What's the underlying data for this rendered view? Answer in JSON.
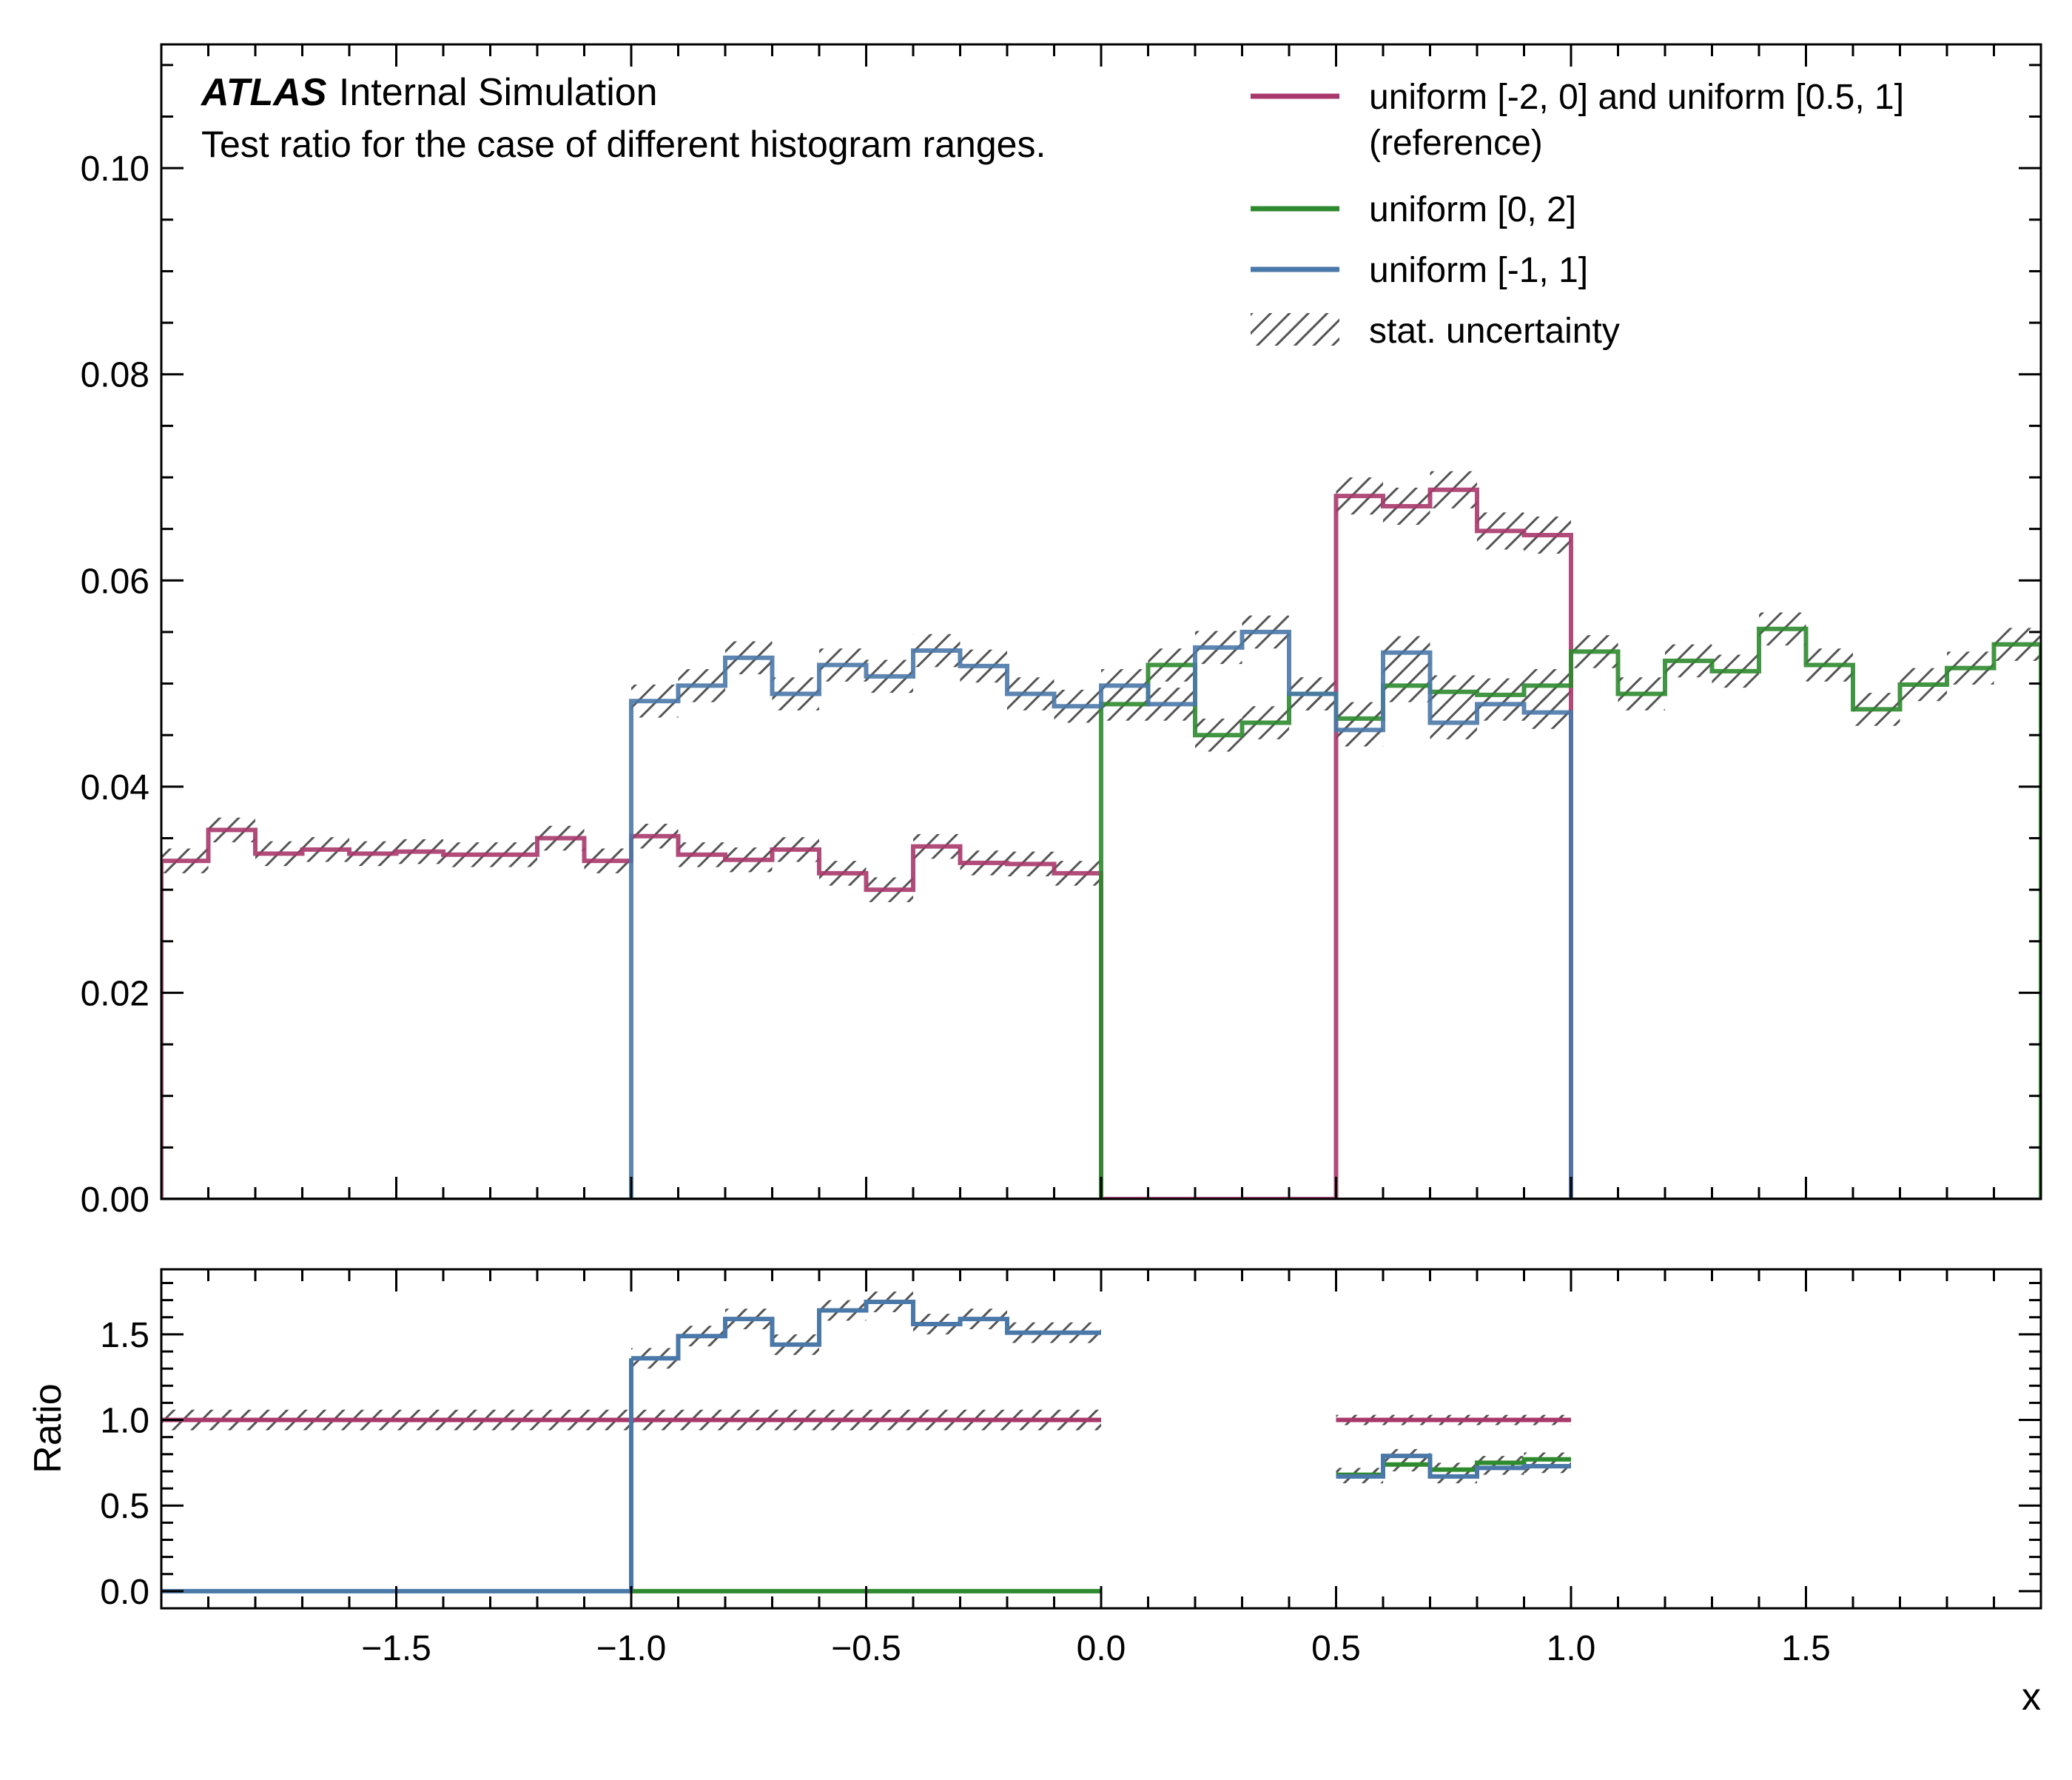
{
  "colors": {
    "reference": "#a8386b",
    "uniform_0_2": "#2e8a2e",
    "uniform_m1_1": "#4a78a8",
    "hatch": "#555555"
  },
  "atlas": {
    "label": "ATLAS",
    "sublabel": "Internal Simulation",
    "annotation": "Test ratio for the case of different histogram ranges."
  },
  "legend": {
    "placement": "top-right",
    "items": [
      {
        "label_lines": [
          "uniform [-2, 0] and uniform [0.5, 1]",
          "(reference)"
        ],
        "color_key": "reference",
        "kind": "line"
      },
      {
        "label_lines": [
          "uniform [0, 2]"
        ],
        "color_key": "uniform_0_2",
        "kind": "line"
      },
      {
        "label_lines": [
          "uniform [-1, 1]"
        ],
        "color_key": "uniform_m1_1",
        "kind": "line"
      },
      {
        "label_lines": [
          "stat. uncertainty"
        ],
        "color_key": "hatch",
        "kind": "hatch"
      }
    ]
  },
  "chart_data": [
    {
      "type": "line",
      "panel": "main",
      "xlim": [
        -2,
        2
      ],
      "ylim": [
        0,
        0.112
      ],
      "yticks": [
        0.0,
        0.02,
        0.04,
        0.06,
        0.08,
        0.1
      ],
      "ytick_labels": [
        "0.00",
        "0.02",
        "0.04",
        "0.06",
        "0.08",
        "0.10"
      ],
      "ylabel": "",
      "grid": false,
      "series": [
        {
          "color_key": "reference",
          "bins": [
            -2.0,
            -1.9,
            -1.8,
            -1.7,
            -1.6,
            -1.5,
            -1.4,
            -1.3,
            -1.2,
            -1.1,
            -1.0,
            -0.9,
            -0.8,
            -0.7,
            -0.6,
            -0.5,
            -0.4,
            -0.3,
            -0.2,
            -0.1,
            0.0,
            0.5,
            0.6,
            0.7,
            0.8,
            0.9,
            1.0
          ],
          "values": [
            0.0328,
            0.0358,
            0.0335,
            0.0339,
            0.0335,
            0.0337,
            0.0334,
            0.0334,
            0.035,
            0.0328,
            0.0352,
            0.0334,
            0.0329,
            0.0339,
            0.0316,
            0.03,
            0.0342,
            0.0326,
            0.0325,
            0.0316,
            0.0,
            0.0682,
            0.0672,
            0.0688,
            0.0648,
            0.0644
          ],
          "errors": [
            0.0012,
            0.0012,
            0.0012,
            0.0012,
            0.0012,
            0.0012,
            0.0012,
            0.0012,
            0.0012,
            0.0012,
            0.0012,
            0.0012,
            0.0012,
            0.0012,
            0.0012,
            0.0012,
            0.0012,
            0.0012,
            0.0012,
            0.0012,
            0.0,
            0.0018,
            0.0018,
            0.0018,
            0.0018,
            0.0018
          ]
        },
        {
          "color_key": "uniform_0_2",
          "bins": [
            0.0,
            0.1,
            0.2,
            0.3,
            0.4,
            0.5,
            0.6,
            0.7,
            0.8,
            0.9,
            1.0,
            1.1,
            1.2,
            1.3,
            1.4,
            1.5,
            1.6,
            1.7,
            1.8,
            1.9,
            2.0
          ],
          "values": [
            0.048,
            0.0518,
            0.045,
            0.0462,
            0.049,
            0.0466,
            0.0498,
            0.0492,
            0.0489,
            0.0498,
            0.0531,
            0.049,
            0.0522,
            0.0512,
            0.0553,
            0.0518,
            0.0475,
            0.0499,
            0.0515,
            0.0538
          ],
          "errors": [
            0.0016,
            0.0016,
            0.0016,
            0.0016,
            0.0016,
            0.0016,
            0.0016,
            0.0016,
            0.0016,
            0.0016,
            0.0016,
            0.0016,
            0.0016,
            0.0016,
            0.0016,
            0.0016,
            0.0016,
            0.0016,
            0.0016,
            0.0016
          ]
        },
        {
          "color_key": "uniform_m1_1",
          "bins": [
            -1.0,
            -0.9,
            -0.8,
            -0.7,
            -0.6,
            -0.5,
            -0.4,
            -0.3,
            -0.2,
            -0.1,
            0.0,
            0.1,
            0.2,
            0.3,
            0.4,
            0.5,
            0.6,
            0.7,
            0.8,
            0.9,
            1.0
          ],
          "values": [
            0.0483,
            0.0498,
            0.0525,
            0.049,
            0.0518,
            0.0507,
            0.0532,
            0.0517,
            0.049,
            0.0478,
            0.0498,
            0.048,
            0.0535,
            0.055,
            0.049,
            0.0455,
            0.053,
            0.0462,
            0.048,
            0.0472
          ],
          "errors": [
            0.0016,
            0.0016,
            0.0016,
            0.0016,
            0.0016,
            0.0016,
            0.0016,
            0.0016,
            0.0016,
            0.0016,
            0.0016,
            0.0016,
            0.0016,
            0.0016,
            0.0016,
            0.0016,
            0.0016,
            0.0016,
            0.0016,
            0.0016
          ]
        }
      ]
    },
    {
      "type": "line",
      "panel": "ratio",
      "xlim": [
        -2,
        2
      ],
      "ylim": [
        -0.1,
        1.88
      ],
      "yticks": [
        0.0,
        0.5,
        1.0,
        1.5
      ],
      "ytick_labels": [
        "0.0",
        "0.5",
        "1.0",
        "1.5"
      ],
      "xticks": [
        -1.5,
        -1.0,
        -0.5,
        0.0,
        0.5,
        1.0,
        1.5
      ],
      "xtick_labels": [
        "−1.5",
        "−1.0",
        "−0.5",
        "0.0",
        "0.5",
        "1.0",
        "1.5"
      ],
      "xlabel": "x",
      "ylabel": "Ratio",
      "grid": false,
      "series": [
        {
          "color_key": "reference",
          "segments": [
            {
              "bins": [
                -2.0,
                0.0
              ],
              "values": [
                1.0
              ],
              "errors": [
                0.06
              ]
            },
            {
              "bins": [
                0.5,
                1.0
              ],
              "values": [
                1.0
              ],
              "errors": [
                0.03
              ]
            }
          ]
        },
        {
          "color_key": "uniform_0_2",
          "segments": [
            {
              "bins": [
                -1.0,
                0.0
              ],
              "values": [
                0.0
              ],
              "errors": [
                0.0
              ]
            },
            {
              "bins": [
                0.5,
                0.6,
                0.7,
                0.8,
                0.9,
                1.0
              ],
              "values": [
                0.68,
                0.74,
                0.71,
                0.75,
                0.77
              ],
              "errors": [
                0.04,
                0.04,
                0.04,
                0.04,
                0.04
              ]
            }
          ]
        },
        {
          "color_key": "uniform_m1_1",
          "segments": [
            {
              "bins": [
                -2.0,
                -1.0
              ],
              "values": [
                0.0
              ],
              "errors": [
                0.0
              ]
            },
            {
              "bins": [
                -1.0,
                -0.9,
                -0.8,
                -0.7,
                -0.6,
                -0.5,
                -0.4,
                -0.3,
                -0.2,
                -0.1,
                0.0
              ],
              "values": [
                1.36,
                1.49,
                1.59,
                1.44,
                1.64,
                1.69,
                1.56,
                1.59,
                1.51,
                1.51
              ],
              "errors": [
                0.06,
                0.06,
                0.06,
                0.06,
                0.06,
                0.06,
                0.06,
                0.06,
                0.06,
                0.06
              ]
            },
            {
              "bins": [
                0.5,
                0.6,
                0.7,
                0.8,
                0.9,
                1.0
              ],
              "values": [
                0.67,
                0.79,
                0.67,
                0.72,
                0.73
              ],
              "errors": [
                0.04,
                0.04,
                0.04,
                0.04,
                0.04
              ]
            }
          ]
        }
      ]
    }
  ]
}
